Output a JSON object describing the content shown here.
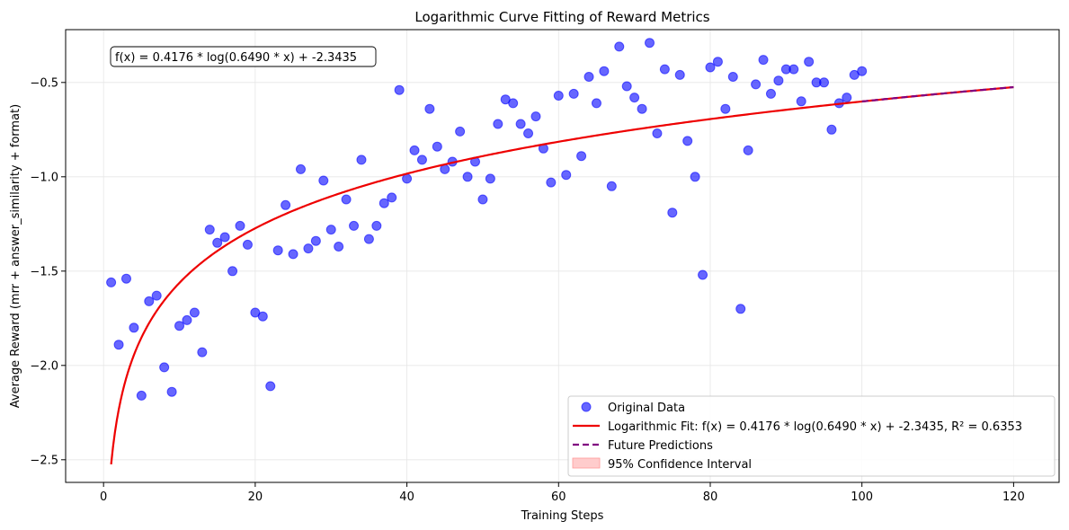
{
  "chart_data": {
    "type": "scatter",
    "title": "Logarithmic Curve Fitting of Reward Metrics",
    "xlabel": "Training Steps",
    "ylabel": "Average Reward (mrr + answer_similarity + format)",
    "xlim": [
      -5,
      126
    ],
    "ylim": [
      -2.62,
      -0.22
    ],
    "xticks": [
      0,
      20,
      40,
      60,
      80,
      100,
      120
    ],
    "yticks": [
      -2.5,
      -2.0,
      -1.5,
      -1.0,
      -0.5
    ],
    "ytick_labels": [
      "−2.5",
      "−2.0",
      "−1.5",
      "−1.0",
      "−0.5"
    ],
    "grid": true,
    "annotation": "f(x) = 0.4176 * log(0.6490 * x) + -2.3435",
    "fit": {
      "a": 0.4176,
      "b": 0.649,
      "c": -2.3435,
      "x_start": 1,
      "x_end": 100
    },
    "future": {
      "x_start": 100,
      "x_end": 120
    },
    "legend_position": "bottom-right",
    "legend": [
      {
        "label": "Original Data",
        "kind": "marker"
      },
      {
        "label": "Logarithmic Fit: f(x) = 0.4176 * log(0.6490 * x) + -2.3435, R² = 0.6353",
        "kind": "line"
      },
      {
        "label": "Future Predictions",
        "kind": "dashed"
      },
      {
        "label": "95% Confidence Interval",
        "kind": "patch"
      }
    ],
    "series": [
      {
        "name": "Original Data",
        "points": [
          [
            1,
            -1.56
          ],
          [
            2,
            -1.89
          ],
          [
            3,
            -1.54
          ],
          [
            4,
            -1.8
          ],
          [
            5,
            -2.16
          ],
          [
            6,
            -1.66
          ],
          [
            7,
            -1.63
          ],
          [
            8,
            -2.01
          ],
          [
            9,
            -2.14
          ],
          [
            10,
            -1.79
          ],
          [
            11,
            -1.76
          ],
          [
            12,
            -1.72
          ],
          [
            13,
            -1.93
          ],
          [
            14,
            -1.28
          ],
          [
            15,
            -1.35
          ],
          [
            16,
            -1.32
          ],
          [
            17,
            -1.5
          ],
          [
            18,
            -1.26
          ],
          [
            19,
            -1.36
          ],
          [
            20,
            -1.72
          ],
          [
            21,
            -1.74
          ],
          [
            22,
            -2.11
          ],
          [
            23,
            -1.39
          ],
          [
            24,
            -1.15
          ],
          [
            25,
            -1.41
          ],
          [
            26,
            -0.96
          ],
          [
            27,
            -1.38
          ],
          [
            28,
            -1.34
          ],
          [
            29,
            -1.02
          ],
          [
            30,
            -1.28
          ],
          [
            31,
            -1.37
          ],
          [
            32,
            -1.12
          ],
          [
            33,
            -1.26
          ],
          [
            34,
            -0.91
          ],
          [
            35,
            -1.33
          ],
          [
            36,
            -1.26
          ],
          [
            37,
            -1.14
          ],
          [
            38,
            -1.11
          ],
          [
            39,
            -0.54
          ],
          [
            40,
            -1.01
          ],
          [
            41,
            -0.86
          ],
          [
            42,
            -0.91
          ],
          [
            43,
            -0.64
          ],
          [
            44,
            -0.84
          ],
          [
            45,
            -0.96
          ],
          [
            46,
            -0.92
          ],
          [
            47,
            -0.76
          ],
          [
            48,
            -1.0
          ],
          [
            49,
            -0.92
          ],
          [
            50,
            -1.12
          ],
          [
            51,
            -1.01
          ],
          [
            52,
            -0.72
          ],
          [
            53,
            -0.59
          ],
          [
            54,
            -0.61
          ],
          [
            55,
            -0.72
          ],
          [
            56,
            -0.77
          ],
          [
            57,
            -0.68
          ],
          [
            58,
            -0.85
          ],
          [
            59,
            -1.03
          ],
          [
            60,
            -0.57
          ],
          [
            61,
            -0.99
          ],
          [
            62,
            -0.56
          ],
          [
            63,
            -0.89
          ],
          [
            64,
            -0.47
          ],
          [
            65,
            -0.61
          ],
          [
            66,
            -0.44
          ],
          [
            67,
            -1.05
          ],
          [
            68,
            -0.31
          ],
          [
            69,
            -0.52
          ],
          [
            70,
            -0.58
          ],
          [
            71,
            -0.64
          ],
          [
            72,
            -0.29
          ],
          [
            73,
            -0.77
          ],
          [
            74,
            -0.43
          ],
          [
            75,
            -1.19
          ],
          [
            76,
            -0.46
          ],
          [
            77,
            -0.81
          ],
          [
            78,
            -1.0
          ],
          [
            79,
            -1.52
          ],
          [
            80,
            -0.42
          ],
          [
            81,
            -0.39
          ],
          [
            82,
            -0.64
          ],
          [
            83,
            -0.47
          ],
          [
            84,
            -1.7
          ],
          [
            85,
            -0.86
          ],
          [
            86,
            -0.51
          ],
          [
            87,
            -0.38
          ],
          [
            88,
            -0.56
          ],
          [
            89,
            -0.49
          ],
          [
            90,
            -0.43
          ],
          [
            91,
            -0.43
          ],
          [
            92,
            -0.6
          ],
          [
            93,
            -0.39
          ],
          [
            94,
            -0.5
          ],
          [
            95,
            -0.5
          ],
          [
            96,
            -0.75
          ],
          [
            97,
            -0.61
          ],
          [
            98,
            -0.58
          ],
          [
            99,
            -0.46
          ],
          [
            100,
            -0.44
          ]
        ]
      }
    ],
    "colors": {
      "points": "#0000ff",
      "fit": "#ee0000",
      "future": "#800080",
      "ci": "#ffcccc",
      "ci_edge": "#ff9999",
      "grid": "#e6e6e6"
    }
  }
}
